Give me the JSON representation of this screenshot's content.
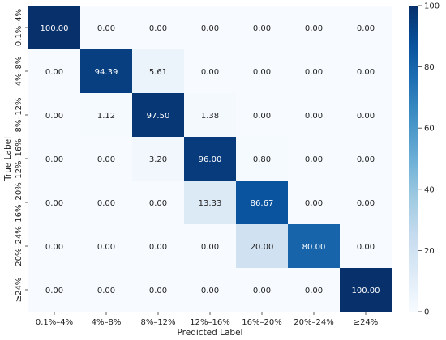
{
  "chart_data": {
    "type": "heatmap",
    "title": "",
    "xlabel": "Predicted Label",
    "ylabel": "True Label",
    "x_categories": [
      "0.1%–4%",
      "4%–8%",
      "8%–12%",
      "12%–16%",
      "16%–20%",
      "20%–24%",
      "≥24%"
    ],
    "y_categories": [
      "0.1%–4%",
      "4%–8%",
      "8%–12%",
      "12%–16%",
      "16%–20%",
      "20%–24%",
      "≥24%"
    ],
    "values": [
      [
        100.0,
        0.0,
        0.0,
        0.0,
        0.0,
        0.0,
        0.0
      ],
      [
        0.0,
        94.39,
        5.61,
        0.0,
        0.0,
        0.0,
        0.0
      ],
      [
        0.0,
        1.12,
        97.5,
        1.38,
        0.0,
        0.0,
        0.0
      ],
      [
        0.0,
        0.0,
        3.2,
        96.0,
        0.8,
        0.0,
        0.0
      ],
      [
        0.0,
        0.0,
        0.0,
        13.33,
        86.67,
        0.0,
        0.0
      ],
      [
        0.0,
        0.0,
        0.0,
        0.0,
        20.0,
        80.0,
        0.0
      ],
      [
        0.0,
        0.0,
        0.0,
        0.0,
        0.0,
        0.0,
        100.0
      ]
    ],
    "value_format_decimals": 2,
    "colorbar": {
      "range": [
        0,
        100
      ],
      "ticks": [
        "0",
        "20",
        "40",
        "60",
        "80",
        "100"
      ],
      "colormap": "Blues"
    }
  }
}
